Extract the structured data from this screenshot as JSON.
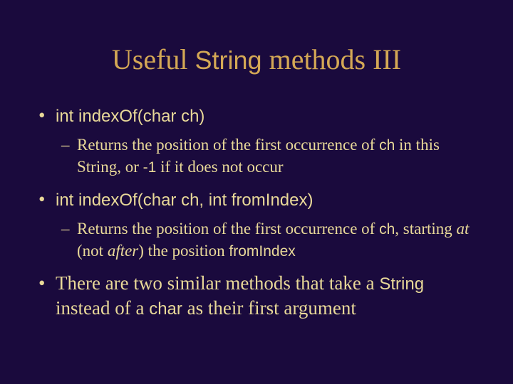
{
  "title": {
    "prefix": "Useful ",
    "mono": "String",
    "suffix": " methods III",
    "color": "#d4a855",
    "fontsize": 40
  },
  "background_color": "#1a0a3d",
  "text_color": "#e8d898",
  "bullets": [
    {
      "main_sans": "int indexOf(char ch)",
      "sub": {
        "pre": "Returns the position of the first occurrence of ",
        "code1": "ch",
        "mid": " in this String, or ",
        "code2": "-1",
        "post": " if it does not occur"
      }
    },
    {
      "main_sans": "int indexOf(char ch, int fromIndex)",
      "sub": {
        "pre": "Returns the position of the first occurrence of ",
        "code1": "ch",
        "mid1": ", starting ",
        "ital1": "at",
        "mid2": " (not ",
        "ital2": "after",
        "mid3": ") the position ",
        "code2": "fromIndex"
      }
    },
    {
      "main_pre": "There are two similar methods that take a ",
      "main_code1": "String",
      "main_mid": " instead of a ",
      "main_code2": "char",
      "main_post": " as their first argument"
    }
  ]
}
